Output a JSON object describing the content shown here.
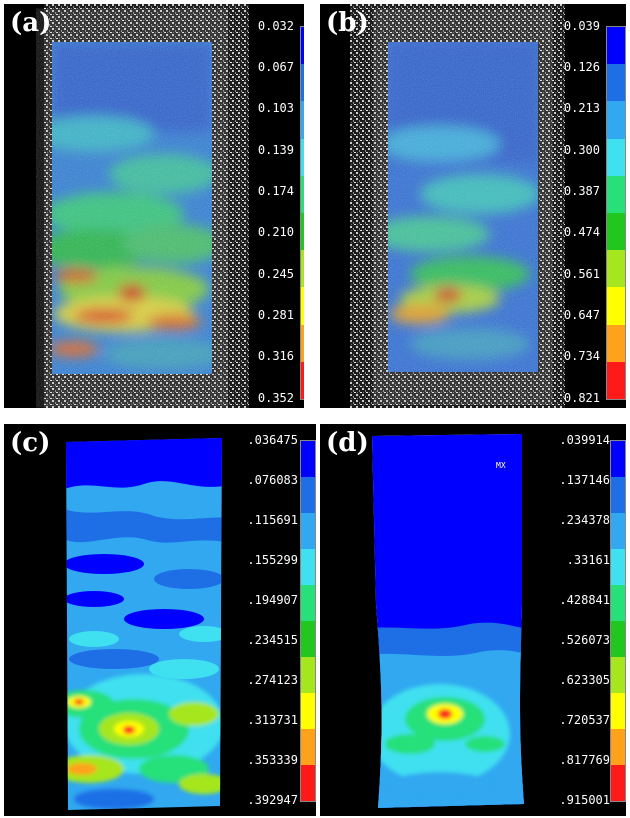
{
  "figure": {
    "panels": [
      {
        "id": "a",
        "label": "(a)",
        "type": "experimental DIC strain field",
        "scale": [
          "0.032",
          "0.067",
          "0.103",
          "0.139",
          "0.174",
          "0.210",
          "0.245",
          "0.281",
          "0.316",
          "0.352"
        ]
      },
      {
        "id": "b",
        "label": "(b)",
        "type": "experimental DIC strain field",
        "scale": [
          "0.039",
          "0.126",
          "0.213",
          "0.300",
          "0.387",
          "0.474",
          "0.561",
          "0.647",
          "0.734",
          "0.821"
        ]
      },
      {
        "id": "c",
        "label": "(c)",
        "type": "FE simulated strain contour",
        "scale": [
          ".036475",
          ".076083",
          ".115691",
          ".155299",
          ".194907",
          ".234515",
          ".274123",
          ".313731",
          ".353339",
          ".392947"
        ]
      },
      {
        "id": "d",
        "label": "(d)",
        "type": "FE simulated strain contour",
        "mx_label": "MX",
        "scale": [
          ".039914",
          ".137146",
          ".234378",
          ".33161",
          ".428841",
          ".526073",
          ".623305",
          ".720537",
          ".817769",
          ".915001"
        ]
      }
    ],
    "colormap": [
      "#0000ff",
      "#1e6fe6",
      "#31a8f0",
      "#3fe0f0",
      "#27e07a",
      "#21c61f",
      "#a6e61e",
      "#ffff00",
      "#ffa21b",
      "#ff1a1a"
    ]
  }
}
